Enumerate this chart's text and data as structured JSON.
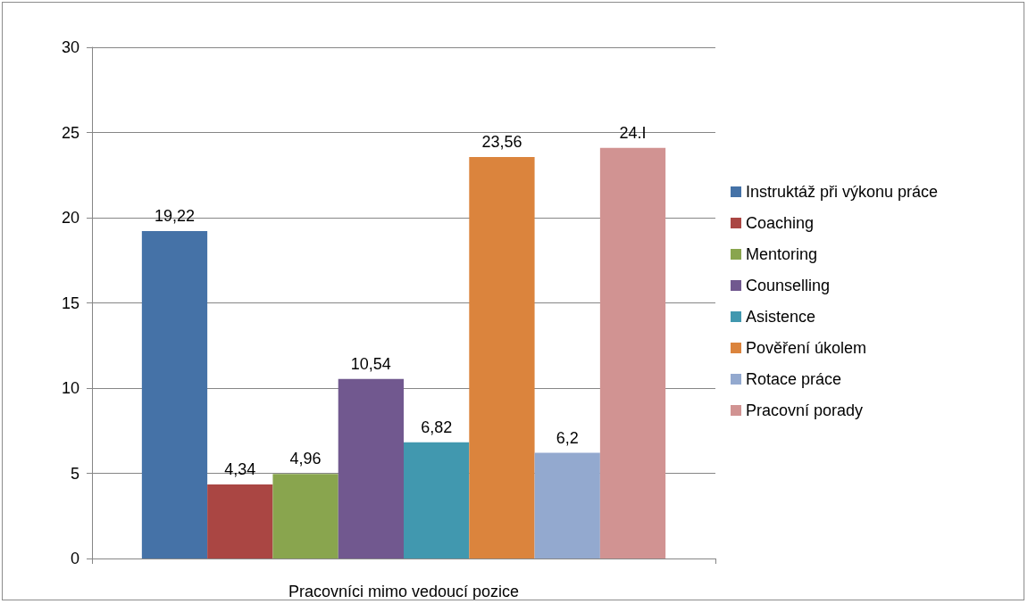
{
  "chart_data": {
    "type": "bar",
    "categories": [
      "Pracovníci mimo vedoucí pozice"
    ],
    "series": [
      {
        "name": "Instruktáž při výkonu práce",
        "color": "#4572a7",
        "values": [
          19.22
        ],
        "value_labels": [
          "19,22"
        ]
      },
      {
        "name": "Coaching",
        "color": "#aa4643",
        "values": [
          4.34
        ],
        "value_labels": [
          "4,34"
        ]
      },
      {
        "name": "Mentoring",
        "color": "#89a54e",
        "values": [
          4.96
        ],
        "value_labels": [
          "4,96"
        ]
      },
      {
        "name": "Counselling",
        "color": "#71588f",
        "values": [
          10.54
        ],
        "value_labels": [
          "10,54"
        ]
      },
      {
        "name": "Asistence",
        "color": "#4198af",
        "values": [
          6.82
        ],
        "value_labels": [
          "6,82"
        ]
      },
      {
        "name": "Pověření úkolem",
        "color": "#db843d",
        "values": [
          23.56
        ],
        "value_labels": [
          "23,56"
        ]
      },
      {
        "name": "Rotace práce",
        "color": "#93a9cf",
        "values": [
          6.2
        ],
        "value_labels": [
          "6,2"
        ]
      },
      {
        "name": "Pracovní porady",
        "color": "#d19392",
        "values": [
          24.1
        ],
        "value_labels": [
          "24.I"
        ]
      }
    ],
    "ylim": [
      0,
      30
    ],
    "yticks": [
      0,
      5,
      10,
      15,
      20,
      25,
      30
    ],
    "grid": "y",
    "legend": "right"
  }
}
